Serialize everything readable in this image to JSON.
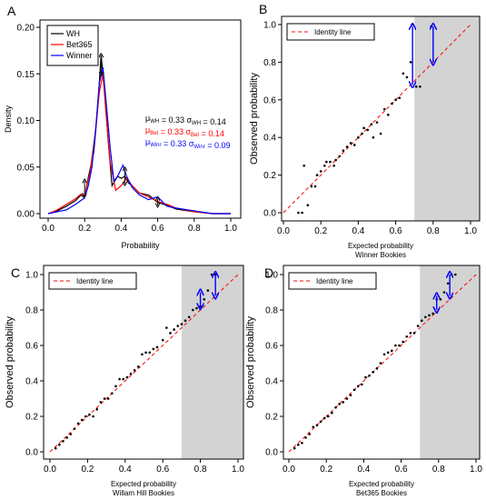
{
  "chart_data": [
    {
      "panel": "A",
      "type": "line",
      "xlabel": "Probability",
      "ylabel": "Density",
      "xlim": [
        0,
        1.0
      ],
      "ylim": [
        0,
        0.2
      ],
      "xticks": [
        "0.0",
        "0.2",
        "0.4",
        "0.6",
        "0.8",
        "1.0"
      ],
      "yticks": [
        "0.00",
        "0.05",
        "0.10",
        "0.15",
        "0.20"
      ],
      "legend": {
        "placement": "top-left",
        "entries": [
          "WH",
          "Bet365",
          "Winner"
        ]
      },
      "stats": [
        {
          "mu_sub": "WH",
          "mu": "0.33",
          "sigma_sub": "WH",
          "sigma": "0.14",
          "color": "#000000"
        },
        {
          "mu_sub": "Bet",
          "mu": "0.33",
          "sigma_sub": "Bet",
          "sigma": "0.14",
          "color": "#ff0000"
        },
        {
          "mu_sub": "Winr",
          "mu": "0.33",
          "sigma_sub": "Winr",
          "sigma": "0.09",
          "color": "#0000ff"
        }
      ],
      "series": [
        {
          "name": "WH",
          "color": "#000000",
          "x": [
            0.0,
            0.05,
            0.1,
            0.15,
            0.18,
            0.2,
            0.22,
            0.25,
            0.27,
            0.29,
            0.31,
            0.33,
            0.35,
            0.38,
            0.4,
            0.42,
            0.44,
            0.46,
            0.5,
            0.55,
            0.6,
            0.65,
            0.7,
            0.8,
            0.9,
            1.0
          ],
          "y": [
            0.0,
            0.003,
            0.008,
            0.014,
            0.02,
            0.017,
            0.039,
            0.066,
            0.11,
            0.17,
            0.13,
            0.075,
            0.03,
            0.04,
            0.038,
            0.04,
            0.033,
            0.03,
            0.022,
            0.02,
            0.012,
            0.009,
            0.005,
            0.002,
            0.0,
            0.0
          ]
        },
        {
          "name": "Bet365",
          "color": "#ff0000",
          "x": [
            0.0,
            0.05,
            0.1,
            0.15,
            0.18,
            0.2,
            0.23,
            0.26,
            0.28,
            0.3,
            0.32,
            0.34,
            0.37,
            0.4,
            0.43,
            0.46,
            0.5,
            0.55,
            0.6,
            0.65,
            0.7,
            0.8,
            0.9,
            1.0
          ],
          "y": [
            0.0,
            0.004,
            0.01,
            0.016,
            0.021,
            0.019,
            0.045,
            0.09,
            0.13,
            0.15,
            0.1,
            0.055,
            0.025,
            0.03,
            0.038,
            0.03,
            0.022,
            0.018,
            0.013,
            0.01,
            0.006,
            0.002,
            0.0,
            0.0
          ]
        },
        {
          "name": "Winner",
          "color": "#0000ff",
          "x": [
            0.0,
            0.05,
            0.1,
            0.15,
            0.2,
            0.22,
            0.24,
            0.26,
            0.28,
            0.3,
            0.32,
            0.34,
            0.36,
            0.38,
            0.41,
            0.43,
            0.46,
            0.5,
            0.55,
            0.6,
            0.65,
            0.7,
            0.8,
            0.9,
            1.0
          ],
          "y": [
            0.0,
            0.002,
            0.004,
            0.01,
            0.017,
            0.03,
            0.05,
            0.09,
            0.14,
            0.157,
            0.115,
            0.07,
            0.035,
            0.04,
            0.052,
            0.04,
            0.028,
            0.02,
            0.015,
            0.018,
            0.008,
            0.006,
            0.003,
            0.0,
            0.0
          ]
        }
      ],
      "arrows": [
        {
          "x": 0.2,
          "y0": 0.02,
          "y1": 0.035,
          "color": "#000000"
        },
        {
          "x": 0.29,
          "y0": 0.15,
          "y1": 0.17,
          "color": "#000000"
        },
        {
          "x": 0.42,
          "y0": 0.032,
          "y1": 0.048,
          "color": "#000000"
        },
        {
          "x": 0.6,
          "y0": 0.009,
          "y1": 0.016,
          "color": "#000000"
        }
      ]
    },
    {
      "panel": "B",
      "type": "scatter",
      "xlabel": "Expected probability",
      "xlabel2": "Winner Bookies",
      "ylabel": "Observed probability",
      "xlim": [
        0,
        1.0
      ],
      "ylim": [
        0,
        1.0
      ],
      "xticks": [
        "0.0",
        "0.2",
        "0.4",
        "0.6",
        "0.8",
        "1.0"
      ],
      "yticks": [
        "0.0",
        "0.2",
        "0.4",
        "0.6",
        "0.8",
        "1.0"
      ],
      "shaded_from": 0.7,
      "legend": {
        "placement": "top-left",
        "entries": [
          "Identity line"
        ]
      },
      "points": [
        [
          0.08,
          0.0
        ],
        [
          0.1,
          0.0
        ],
        [
          0.11,
          0.25
        ],
        [
          0.13,
          0.04
        ],
        [
          0.15,
          0.14
        ],
        [
          0.17,
          0.14
        ],
        [
          0.18,
          0.2
        ],
        [
          0.2,
          0.22
        ],
        [
          0.22,
          0.25
        ],
        [
          0.23,
          0.27
        ],
        [
          0.25,
          0.27
        ],
        [
          0.27,
          0.25
        ],
        [
          0.28,
          0.28
        ],
        [
          0.3,
          0.3
        ],
        [
          0.32,
          0.33
        ],
        [
          0.34,
          0.35
        ],
        [
          0.36,
          0.37
        ],
        [
          0.38,
          0.36
        ],
        [
          0.4,
          0.4
        ],
        [
          0.42,
          0.42
        ],
        [
          0.43,
          0.45
        ],
        [
          0.45,
          0.44
        ],
        [
          0.47,
          0.47
        ],
        [
          0.48,
          0.4
        ],
        [
          0.5,
          0.48
        ],
        [
          0.52,
          0.42
        ],
        [
          0.54,
          0.55
        ],
        [
          0.56,
          0.52
        ],
        [
          0.58,
          0.58
        ],
        [
          0.6,
          0.6
        ],
        [
          0.62,
          0.61
        ],
        [
          0.64,
          0.74
        ],
        [
          0.66,
          0.72
        ],
        [
          0.68,
          0.8
        ],
        [
          0.69,
          1.0
        ],
        [
          0.71,
          0.67
        ],
        [
          0.73,
          0.67
        ],
        [
          0.79,
          0.99
        ]
      ],
      "arrows": [
        {
          "x": 0.69,
          "y0": 0.68,
          "y1": 0.99
        },
        {
          "x": 0.8,
          "y0": 0.8,
          "y1": 0.99
        }
      ]
    },
    {
      "panel": "C",
      "type": "scatter",
      "xlabel": "Expected probability",
      "xlabel2": "Willam Hill Bookies",
      "ylabel": "Observed probability",
      "xlim": [
        0,
        1.0
      ],
      "ylim": [
        0,
        1.0
      ],
      "xticks": [
        "0.0",
        "0.2",
        "0.4",
        "0.6",
        "0.8",
        "1.0"
      ],
      "yticks": [
        "0.0",
        "0.2",
        "0.4",
        "0.6",
        "0.8",
        "1.0"
      ],
      "shaded_from": 0.7,
      "legend": {
        "placement": "top-left",
        "entries": [
          "Identity line"
        ]
      },
      "points": [
        [
          0.03,
          0.02
        ],
        [
          0.05,
          0.04
        ],
        [
          0.07,
          0.06
        ],
        [
          0.09,
          0.08
        ],
        [
          0.11,
          0.1
        ],
        [
          0.13,
          0.13
        ],
        [
          0.15,
          0.16
        ],
        [
          0.17,
          0.18
        ],
        [
          0.19,
          0.2
        ],
        [
          0.21,
          0.21
        ],
        [
          0.23,
          0.2
        ],
        [
          0.25,
          0.24
        ],
        [
          0.27,
          0.28
        ],
        [
          0.29,
          0.3
        ],
        [
          0.31,
          0.3
        ],
        [
          0.33,
          0.33
        ],
        [
          0.35,
          0.37
        ],
        [
          0.37,
          0.41
        ],
        [
          0.39,
          0.41
        ],
        [
          0.41,
          0.42
        ],
        [
          0.43,
          0.44
        ],
        [
          0.45,
          0.46
        ],
        [
          0.47,
          0.48
        ],
        [
          0.49,
          0.55
        ],
        [
          0.51,
          0.56
        ],
        [
          0.53,
          0.56
        ],
        [
          0.55,
          0.58
        ],
        [
          0.57,
          0.59
        ],
        [
          0.6,
          0.63
        ],
        [
          0.62,
          0.7
        ],
        [
          0.64,
          0.67
        ],
        [
          0.66,
          0.69
        ],
        [
          0.68,
          0.71
        ],
        [
          0.7,
          0.72
        ],
        [
          0.72,
          0.74
        ],
        [
          0.74,
          0.76
        ],
        [
          0.76,
          0.8
        ],
        [
          0.78,
          0.81
        ],
        [
          0.8,
          0.82
        ],
        [
          0.82,
          0.86
        ],
        [
          0.84,
          0.91
        ],
        [
          0.86,
          1.0
        ],
        [
          0.88,
          1.0
        ]
      ],
      "arrows": [
        {
          "x": 0.8,
          "y0": 0.82,
          "y1": 0.9
        },
        {
          "x": 0.88,
          "y0": 0.88,
          "y1": 1.0
        }
      ]
    },
    {
      "panel": "D",
      "type": "scatter",
      "xlabel": "Expected probability",
      "xlabel2": "Bet365 Bookies",
      "ylabel": "Observed probability",
      "xlim": [
        0,
        1.0
      ],
      "ylim": [
        0,
        1.0
      ],
      "xticks": [
        "0.0",
        "0.2",
        "0.4",
        "0.6",
        "0.8",
        "1.0"
      ],
      "yticks": [
        "0.0",
        "0.2",
        "0.4",
        "0.6",
        "0.8",
        "1.0"
      ],
      "shaded_from": 0.7,
      "legend": {
        "placement": "top-left",
        "entries": [
          "Identity line"
        ]
      },
      "points": [
        [
          0.03,
          0.02
        ],
        [
          0.05,
          0.04
        ],
        [
          0.07,
          0.05
        ],
        [
          0.09,
          0.08
        ],
        [
          0.11,
          0.1
        ],
        [
          0.13,
          0.14
        ],
        [
          0.15,
          0.15
        ],
        [
          0.17,
          0.17
        ],
        [
          0.19,
          0.19
        ],
        [
          0.21,
          0.2
        ],
        [
          0.23,
          0.22
        ],
        [
          0.25,
          0.25
        ],
        [
          0.27,
          0.27
        ],
        [
          0.29,
          0.28
        ],
        [
          0.31,
          0.3
        ],
        [
          0.33,
          0.32
        ],
        [
          0.35,
          0.35
        ],
        [
          0.37,
          0.37
        ],
        [
          0.39,
          0.38
        ],
        [
          0.41,
          0.42
        ],
        [
          0.43,
          0.43
        ],
        [
          0.45,
          0.45
        ],
        [
          0.47,
          0.47
        ],
        [
          0.49,
          0.5
        ],
        [
          0.51,
          0.55
        ],
        [
          0.53,
          0.56
        ],
        [
          0.55,
          0.57
        ],
        [
          0.57,
          0.6
        ],
        [
          0.59,
          0.6
        ],
        [
          0.61,
          0.62
        ],
        [
          0.63,
          0.65
        ],
        [
          0.65,
          0.67
        ],
        [
          0.67,
          0.67
        ],
        [
          0.69,
          0.71
        ],
        [
          0.71,
          0.74
        ],
        [
          0.73,
          0.76
        ],
        [
          0.75,
          0.77
        ],
        [
          0.77,
          0.78
        ],
        [
          0.79,
          0.86
        ],
        [
          0.81,
          0.86
        ],
        [
          0.83,
          0.9
        ],
        [
          0.85,
          0.95
        ],
        [
          0.87,
          1.0
        ],
        [
          0.89,
          1.0
        ]
      ],
      "arrows": [
        {
          "x": 0.79,
          "y0": 0.8,
          "y1": 0.88
        },
        {
          "x": 0.86,
          "y0": 0.88,
          "y1": 1.0
        }
      ]
    }
  ]
}
